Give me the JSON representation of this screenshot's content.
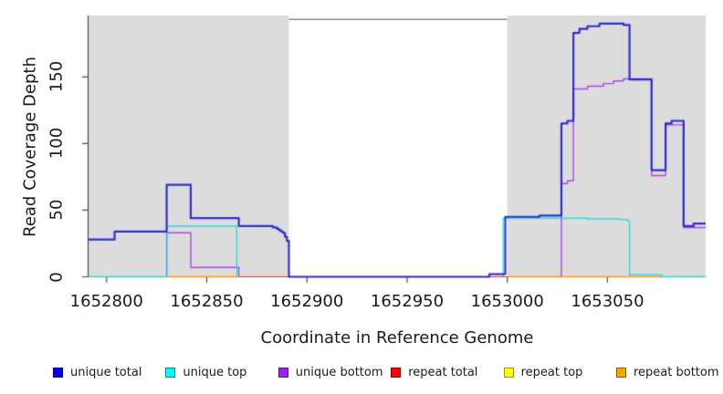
{
  "figure": {
    "background": "#FFFFFF",
    "shaded_region_color": "#DCDCDC",
    "axis_color": "#4D4D4D",
    "gap_border_color": "#8C8C8C",
    "text_color": "#1A1A1A"
  },
  "legend": {
    "items": [
      {
        "label": "unique total",
        "color": "#0000EE",
        "border": "#00008B"
      },
      {
        "label": "unique top",
        "color": "#00FFFF",
        "border": "#008B8B"
      },
      {
        "label": "unique bottom",
        "color": "#A020F0",
        "border": "#551A8B"
      },
      {
        "label": "repeat total",
        "color": "#FF0000",
        "border": "#8B0000"
      },
      {
        "label": "repeat top",
        "color": "#FFFF00",
        "border": "#B8860B"
      },
      {
        "label": "repeat bottom",
        "color": "#FFA500",
        "border": "#8B5A00"
      }
    ]
  },
  "chart_data": {
    "type": "line",
    "subtype": "step-after",
    "title": "",
    "xlabel": "Coordinate in Reference Genome",
    "ylabel": "Read Coverage Depth",
    "x_range": [
      1652791,
      1653099
    ],
    "y_range": [
      0,
      194
    ],
    "x_ticks": [
      1652800,
      1652850,
      1652900,
      1652950,
      1653000,
      1653050
    ],
    "x_tick_labels": [
      "1652800",
      "1652850",
      "1652900",
      "1652950",
      "1653000",
      "1653050"
    ],
    "y_ticks": [
      0,
      50,
      100,
      150
    ],
    "y_tick_labels": [
      "0",
      "50",
      "100",
      "150"
    ],
    "grid": false,
    "legend_position": "bottom",
    "shaded_regions": [
      {
        "x0": 1652791,
        "x1": 1652891
      },
      {
        "x0": 1653000,
        "x1": 1653099
      }
    ],
    "gap_top_border": {
      "x0": 1652891,
      "x1": 1653000
    },
    "series": [
      {
        "name": "unique total",
        "color": "#2222CC",
        "segments": [
          [
            [
              1652791,
              28
            ],
            [
              1652804,
              34
            ],
            [
              1652830,
              69
            ],
            [
              1652842,
              44
            ],
            [
              1652866,
              38
            ],
            [
              1652883,
              37
            ],
            [
              1652885,
              36
            ],
            [
              1652886,
              35
            ],
            [
              1652887,
              34
            ],
            [
              1652888,
              33
            ],
            [
              1652889,
              30
            ],
            [
              1652890,
              27
            ],
            [
              1652891,
              0
            ],
            [
              1652991,
              2
            ],
            [
              1652999,
              45
            ],
            [
              1653016,
              46
            ],
            [
              1653027,
              115
            ],
            [
              1653030,
              117
            ],
            [
              1653033,
              183
            ],
            [
              1653036,
              186
            ],
            [
              1653040,
              188
            ],
            [
              1653046,
              190
            ],
            [
              1653058,
              189
            ],
            [
              1653061,
              148
            ],
            [
              1653072,
              80
            ],
            [
              1653079,
              115
            ],
            [
              1653082,
              117
            ],
            [
              1653088,
              38
            ],
            [
              1653093,
              40
            ],
            [
              1653099,
              40
            ]
          ]
        ]
      },
      {
        "name": "unique top",
        "color": "#00DDDD",
        "segments": [
          [
            [
              1652791,
              0
            ],
            [
              1652830,
              38
            ],
            [
              1652865,
              0
            ]
          ],
          [
            [
              1652998,
              0
            ],
            [
              1652998,
              44
            ],
            [
              1653040,
              43.5
            ],
            [
              1653056,
              43
            ],
            [
              1653060,
              42
            ],
            [
              1653061,
              1.5
            ],
            [
              1653077,
              0
            ],
            [
              1653099,
              0
            ]
          ]
        ]
      },
      {
        "name": "unique bottom",
        "color": "#A020F0",
        "segments": [
          [
            [
              1652830,
              0
            ],
            [
              1652830,
              33
            ],
            [
              1652842,
              7
            ],
            [
              1652866,
              0
            ]
          ],
          [
            [
              1653026,
              0
            ],
            [
              1653027,
              70
            ],
            [
              1653030,
              72
            ],
            [
              1653033,
              141
            ],
            [
              1653040,
              143
            ],
            [
              1653048,
              145
            ],
            [
              1653053,
              147
            ],
            [
              1653058,
              148.5
            ],
            [
              1653072,
              76
            ],
            [
              1653079,
              114
            ],
            [
              1653088,
              37
            ],
            [
              1653099,
              37
            ]
          ]
        ]
      },
      {
        "name": "repeat total",
        "color": "#E62222",
        "segments": [
          [
            [
              1652866,
              0
            ],
            [
              1653000,
              0
            ]
          ]
        ]
      },
      {
        "name": "repeat top",
        "color": "#E8D800",
        "segments": [
          [
            [
              1652791,
              0
            ],
            [
              1652891,
              0
            ]
          ],
          [
            [
              1653000,
              0
            ],
            [
              1653099,
              0
            ]
          ]
        ]
      },
      {
        "name": "repeat bottom",
        "color": "#FF9900",
        "segments": [
          [
            [
              1652830,
              0
            ],
            [
              1652866,
              0
            ]
          ],
          [
            [
              1653000,
              0
            ],
            [
              1653078,
              0
            ]
          ]
        ]
      }
    ]
  }
}
